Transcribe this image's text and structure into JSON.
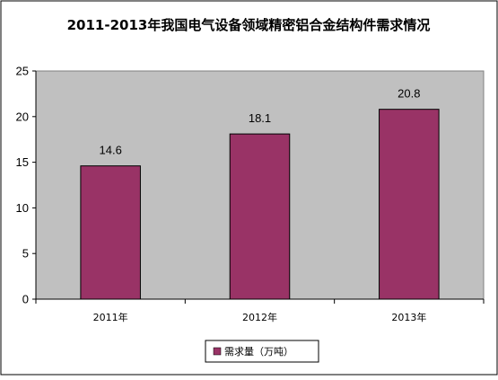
{
  "chart_data": {
    "type": "bar",
    "title": "2011-2013年我国电气设备领域精密铝合金结构件需求情况",
    "categories": [
      "2011年",
      "2012年",
      "2013年"
    ],
    "series": [
      {
        "name": "需求量（万吨）",
        "values": [
          14.6,
          18.1,
          20.8
        ],
        "color": "#993366"
      }
    ],
    "data_labels": [
      "14.6",
      "18.1",
      "20.8"
    ],
    "ylim": [
      0,
      25
    ],
    "yticks": [
      "0",
      "5",
      "10",
      "15",
      "20",
      "25"
    ],
    "xlabel": "",
    "ylabel": "",
    "grid": false,
    "legend_position": "bottom",
    "plot_background": "#c0c0c0",
    "page_background": "#ffffff"
  }
}
